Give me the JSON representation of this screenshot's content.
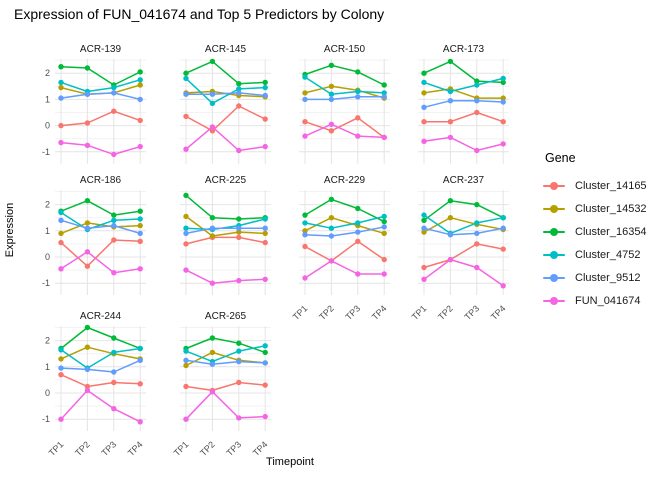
{
  "title": "Expression of FUN_041674 and Top 5 Predictors by Colony",
  "axes": {
    "x_title": "Timepoint",
    "y_title": "Expression",
    "x_ticks": [
      "TP1",
      "TP2",
      "TP3",
      "TP4"
    ],
    "y_ticks": [
      2,
      1,
      0,
      -1
    ]
  },
  "legend": {
    "title": "Gene"
  },
  "colors": {
    "grid_major": "#e4e4e4",
    "grid_minor": "#f2f2f2",
    "tick_text": "#4d4d4d",
    "facet_text": "#1a1a1a"
  },
  "chart_data": {
    "type": "line",
    "facet_by": "Colony",
    "x": [
      "TP1",
      "TP2",
      "TP3",
      "TP4"
    ],
    "ylim": [
      -1.45,
      2.55
    ],
    "y_major_gridlines": [
      2,
      1,
      0,
      -1
    ],
    "y_minor_gridlines": [
      2.5,
      1.5,
      0.5,
      -0.5
    ],
    "legend_position": "right",
    "series": [
      {
        "name": "Cluster_14165",
        "color": "#F8766D"
      },
      {
        "name": "Cluster_14532",
        "color": "#B79F00"
      },
      {
        "name": "Cluster_16354",
        "color": "#00BA38"
      },
      {
        "name": "Cluster_4752",
        "color": "#00BFC4"
      },
      {
        "name": "Cluster_9512",
        "color": "#619CFF"
      },
      {
        "name": "FUN_041674",
        "color": "#F564E3"
      }
    ],
    "facets": [
      {
        "colony": "ACR-139",
        "values": [
          [
            0.0,
            0.1,
            0.55,
            0.2
          ],
          [
            1.45,
            1.2,
            1.25,
            1.55
          ],
          [
            2.25,
            2.2,
            1.55,
            2.05
          ],
          [
            1.65,
            1.3,
            1.45,
            1.75
          ],
          [
            1.05,
            1.2,
            1.25,
            1.0
          ],
          [
            -0.65,
            -0.75,
            -1.1,
            -0.8
          ]
        ]
      },
      {
        "colony": "ACR-145",
        "values": [
          [
            0.35,
            -0.2,
            0.75,
            0.25
          ],
          [
            1.25,
            1.3,
            1.15,
            1.1
          ],
          [
            2.0,
            2.45,
            1.6,
            1.65
          ],
          [
            1.8,
            0.85,
            1.4,
            1.45
          ],
          [
            1.2,
            1.2,
            1.25,
            1.15
          ],
          [
            -0.9,
            -0.05,
            -0.95,
            -0.8
          ]
        ]
      },
      {
        "colony": "ACR-150",
        "values": [
          [
            0.15,
            -0.2,
            0.3,
            -0.45
          ],
          [
            1.25,
            1.5,
            1.35,
            1.05
          ],
          [
            1.95,
            2.3,
            2.05,
            1.55
          ],
          [
            1.85,
            1.2,
            1.3,
            1.25
          ],
          [
            1.0,
            1.0,
            1.1,
            1.1
          ],
          [
            -0.4,
            0.05,
            -0.4,
            -0.45
          ]
        ]
      },
      {
        "colony": "ACR-173",
        "values": [
          [
            0.15,
            0.15,
            0.5,
            0.15
          ],
          [
            1.25,
            1.4,
            1.05,
            1.05
          ],
          [
            2.0,
            2.45,
            1.7,
            1.65
          ],
          [
            1.65,
            1.3,
            1.55,
            1.8
          ],
          [
            0.7,
            0.95,
            0.95,
            0.9
          ],
          [
            -0.6,
            -0.45,
            -0.95,
            -0.7
          ]
        ]
      },
      {
        "colony": "ACR-186",
        "values": [
          [
            0.55,
            -0.35,
            0.65,
            0.6
          ],
          [
            0.9,
            1.3,
            1.15,
            1.2
          ],
          [
            1.75,
            2.15,
            1.6,
            1.75
          ],
          [
            1.7,
            1.05,
            1.4,
            1.45
          ],
          [
            1.4,
            1.1,
            1.2,
            0.9
          ],
          [
            -0.45,
            0.2,
            -0.6,
            -0.45
          ]
        ]
      },
      {
        "colony": "ACR-225",
        "values": [
          [
            0.5,
            0.75,
            0.75,
            0.55
          ],
          [
            1.55,
            0.8,
            0.95,
            0.9
          ],
          [
            2.35,
            1.5,
            1.45,
            1.5
          ],
          [
            1.1,
            1.05,
            1.2,
            1.45
          ],
          [
            0.9,
            1.1,
            1.1,
            1.1
          ],
          [
            -0.5,
            -1.0,
            -0.9,
            -0.85
          ]
        ]
      },
      {
        "colony": "ACR-229",
        "values": [
          [
            0.4,
            -0.15,
            0.6,
            -0.1
          ],
          [
            1.0,
            1.5,
            1.2,
            0.9
          ],
          [
            1.6,
            2.2,
            1.85,
            1.35
          ],
          [
            1.3,
            1.1,
            1.3,
            1.55
          ],
          [
            0.85,
            0.8,
            0.95,
            1.15
          ],
          [
            -0.8,
            -0.15,
            -0.65,
            -0.65
          ]
        ]
      },
      {
        "colony": "ACR-237",
        "values": [
          [
            -0.4,
            -0.1,
            0.5,
            0.3
          ],
          [
            0.95,
            1.5,
            1.25,
            1.05
          ],
          [
            1.4,
            2.15,
            2.0,
            1.5
          ],
          [
            1.6,
            0.9,
            1.3,
            1.5
          ],
          [
            1.1,
            0.85,
            0.9,
            1.1
          ],
          [
            -0.85,
            -0.1,
            -0.4,
            -1.1
          ]
        ]
      },
      {
        "colony": "ACR-244",
        "values": [
          [
            0.7,
            0.25,
            0.4,
            0.35
          ],
          [
            1.3,
            1.75,
            1.5,
            1.3
          ],
          [
            1.7,
            2.5,
            2.1,
            1.7
          ],
          [
            1.65,
            0.95,
            1.55,
            1.7
          ],
          [
            0.95,
            0.9,
            0.8,
            1.25
          ],
          [
            -1.0,
            0.1,
            -0.6,
            -1.1
          ]
        ]
      },
      {
        "colony": "ACR-265",
        "values": [
          [
            0.25,
            0.1,
            0.4,
            0.3
          ],
          [
            1.05,
            1.55,
            1.25,
            1.15
          ],
          [
            1.7,
            2.1,
            1.9,
            1.55
          ],
          [
            1.6,
            1.2,
            1.6,
            1.8
          ],
          [
            1.25,
            1.1,
            1.2,
            1.15
          ],
          [
            -1.0,
            0.05,
            -0.95,
            -0.9
          ]
        ]
      }
    ]
  }
}
